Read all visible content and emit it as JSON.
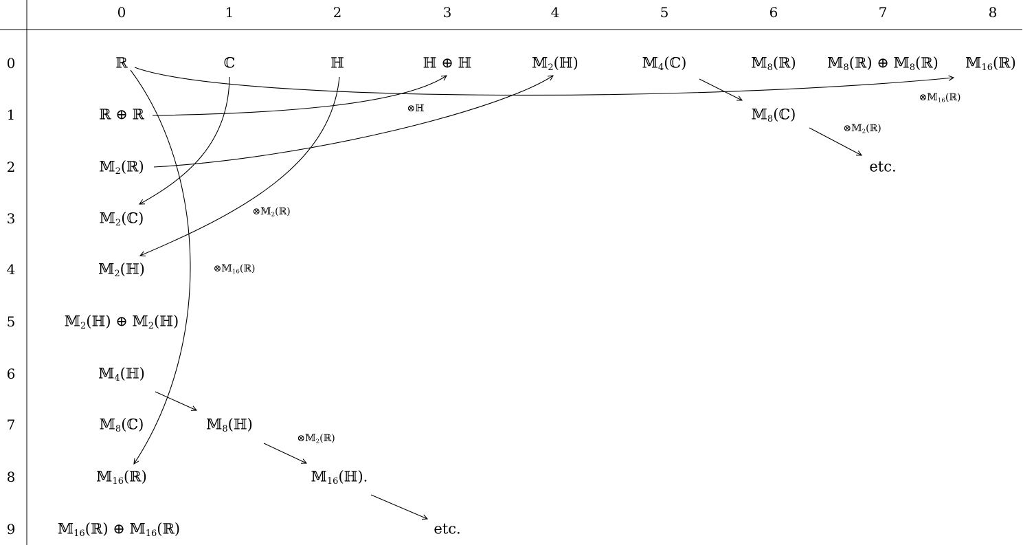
{
  "col_headers": [
    "0",
    "1",
    "2",
    "3",
    "4",
    "5",
    "6",
    "7",
    "8"
  ],
  "row_headers": [
    "0",
    "1",
    "2",
    "3",
    "4",
    "5",
    "6",
    "7",
    "8",
    "9"
  ],
  "entries": {
    "r0c0": "ℝ",
    "r0c1": "ℂ",
    "r0c2": "ℍ",
    "r0c3": "ℍ ⊕ ℍ",
    "r0c4": "𝕄<sub>2</sub>(ℍ)",
    "r0c5": "𝕄<sub>4</sub>(ℂ)",
    "r0c6": "𝕄<sub>8</sub>(ℝ)",
    "r0c7": "𝕄<sub>8</sub>(ℝ) ⊕ 𝕄<sub>8</sub>(ℝ)",
    "r0c8": "𝕄<sub>16</sub>(ℝ)",
    "r1c0": "ℝ ⊕ ℝ",
    "r1c6": "𝕄<sub>8</sub>(ℂ)",
    "r2c0": "𝕄<sub>2</sub>(ℝ)",
    "r2c7": "etc.",
    "r3c0": "𝕄<sub>2</sub>(ℂ)",
    "r4c0": "𝕄<sub>2</sub>(ℍ)",
    "r5c0": "𝕄<sub>2</sub>(ℍ) ⊕ 𝕄<sub>2</sub>(ℍ)",
    "r6c0": "𝕄<sub>4</sub>(ℍ)",
    "r7c0": "𝕄<sub>8</sub>(ℂ)",
    "r7c1": "𝕄<sub>8</sub>(ℍ)",
    "r8c0": "𝕄<sub>16</sub>(ℝ)",
    "r8c2": "𝕄<sub>16</sub>(ℍ).",
    "r9c0": "𝕄<sub>16</sub>(ℝ) ⊕ 𝕄<sub>16</sub>(ℝ)",
    "r9c3": "etc."
  },
  "annotations": {
    "tensor_H": "⊗ℍ",
    "tensor_M2R_upper": "⊗𝕄<sub>2</sub>(ℝ)",
    "tensor_M2R_left": "⊗𝕄<sub>2</sub>(ℝ)",
    "tensor_M16R_right": "⊗𝕄<sub>16</sub>(ℝ)",
    "tensor_M16R_left": "⊗𝕄<sub>16</sub>(ℝ)",
    "tensor_M2R_lower": "⊗𝕄<sub>2</sub>(ℝ)"
  }
}
